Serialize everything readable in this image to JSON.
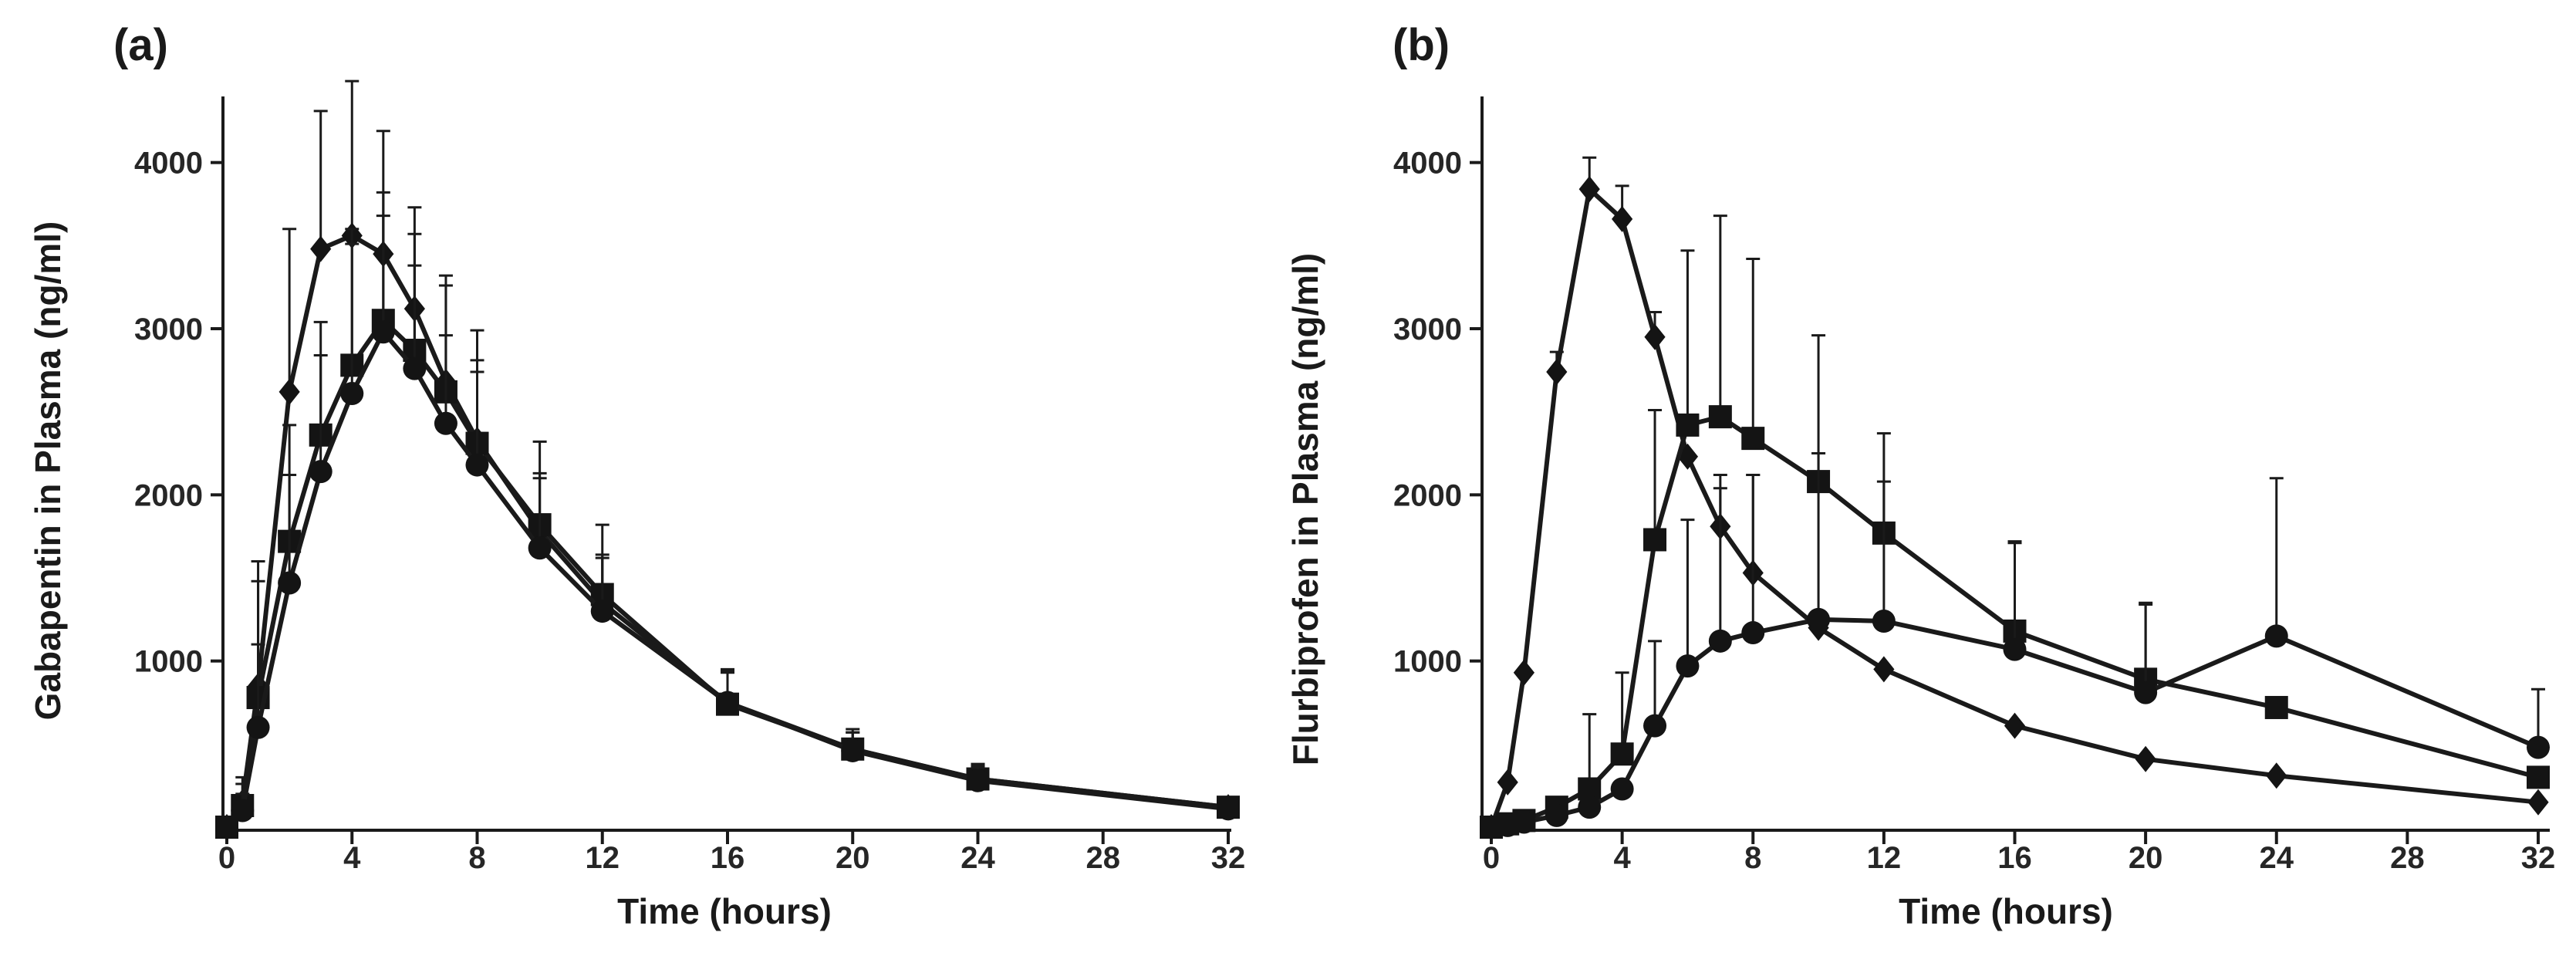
{
  "chart_data": [
    {
      "panel": "(a)",
      "type": "line",
      "ylabel": "Gabapentin in Plasma (ng/ml)",
      "xlabel": "Time (hours)",
      "xlim": [
        0,
        32
      ],
      "ylim": [
        0,
        4500
      ],
      "xticks": [
        0,
        4,
        8,
        12,
        16,
        20,
        24,
        28,
        32
      ],
      "yticks": [
        1000,
        2000,
        3000,
        4000
      ],
      "grid": false,
      "series": [
        {
          "name": "diamond",
          "marker": "diamond",
          "x": [
            0,
            0.5,
            1,
            2,
            3,
            4,
            5,
            6,
            7,
            8,
            10,
            12,
            16,
            20,
            24,
            32
          ],
          "y": [
            0,
            150,
            850,
            2620,
            3480,
            3560,
            3450,
            3120,
            2680,
            2330,
            1780,
            1350,
            750,
            470,
            290,
            120
          ],
          "err": [
            0,
            150,
            750,
            980,
            830,
            930,
            740,
            610,
            580,
            480,
            350,
            270,
            180,
            100,
            80,
            50
          ]
        },
        {
          "name": "square",
          "marker": "square",
          "x": [
            0,
            0.5,
            1,
            2,
            3,
            4,
            5,
            6,
            7,
            8,
            10,
            12,
            16,
            20,
            24,
            32
          ],
          "y": [
            0,
            130,
            780,
            1720,
            2360,
            2780,
            3050,
            2870,
            2620,
            2310,
            1820,
            1400,
            740,
            470,
            290,
            120
          ],
          "err": [
            0,
            130,
            700,
            700,
            680,
            820,
            770,
            700,
            700,
            680,
            500,
            420,
            200,
            120,
            90,
            50
          ]
        },
        {
          "name": "circle",
          "marker": "circle",
          "x": [
            0,
            0.5,
            1,
            2,
            3,
            4,
            5,
            6,
            7,
            8,
            10,
            12,
            16,
            20,
            24,
            32
          ],
          "y": [
            0,
            100,
            600,
            1470,
            2140,
            2610,
            2980,
            2760,
            2430,
            2180,
            1680,
            1300,
            750,
            460,
            280,
            110
          ],
          "err": [
            0,
            100,
            500,
            650,
            700,
            900,
            700,
            620,
            530,
            560,
            420,
            340,
            200,
            110,
            80,
            50
          ]
        }
      ]
    },
    {
      "panel": "(b)",
      "type": "line",
      "ylabel": "Flurbiprofen in Plasma (ng/ml)",
      "xlabel": "Time (hours)",
      "xlim": [
        0,
        32
      ],
      "ylim": [
        0,
        4500
      ],
      "xticks": [
        0,
        4,
        8,
        12,
        16,
        20,
        24,
        28,
        32
      ],
      "yticks": [
        1000,
        2000,
        3000,
        4000
      ],
      "grid": false,
      "series": [
        {
          "name": "diamond",
          "marker": "diamond",
          "x": [
            0,
            0.5,
            1,
            2,
            3,
            4,
            5,
            6,
            7,
            8,
            10,
            12,
            16,
            20,
            24,
            32
          ],
          "y": [
            0,
            270,
            930,
            2740,
            3840,
            3660,
            2950,
            2230,
            1810,
            1530,
            1200,
            950,
            610,
            410,
            310,
            150
          ],
          "err": [
            0,
            0,
            0,
            120,
            190,
            200,
            150,
            0,
            230,
            590,
            0,
            0,
            0,
            0,
            0,
            0
          ]
        },
        {
          "name": "square",
          "marker": "square",
          "x": [
            0,
            0.5,
            1,
            2,
            3,
            4,
            5,
            6,
            7,
            8,
            10,
            12,
            16,
            20,
            24,
            32
          ],
          "y": [
            0,
            20,
            40,
            120,
            230,
            440,
            1730,
            2420,
            2470,
            2340,
            2080,
            1770,
            1180,
            890,
            720,
            300
          ],
          "err": [
            0,
            0,
            0,
            0,
            450,
            490,
            780,
            1050,
            1210,
            1080,
            880,
            600,
            540,
            450,
            0,
            0
          ]
        },
        {
          "name": "circle",
          "marker": "circle",
          "x": [
            0,
            0.5,
            1,
            2,
            3,
            4,
            5,
            6,
            7,
            8,
            10,
            12,
            16,
            20,
            24,
            32
          ],
          "y": [
            0,
            10,
            30,
            70,
            120,
            230,
            610,
            970,
            1120,
            1170,
            1250,
            1240,
            1070,
            810,
            1150,
            480
          ],
          "err": [
            0,
            0,
            0,
            0,
            0,
            0,
            510,
            880,
            1000,
            950,
            1000,
            840,
            640,
            540,
            950,
            350
          ]
        }
      ]
    }
  ]
}
